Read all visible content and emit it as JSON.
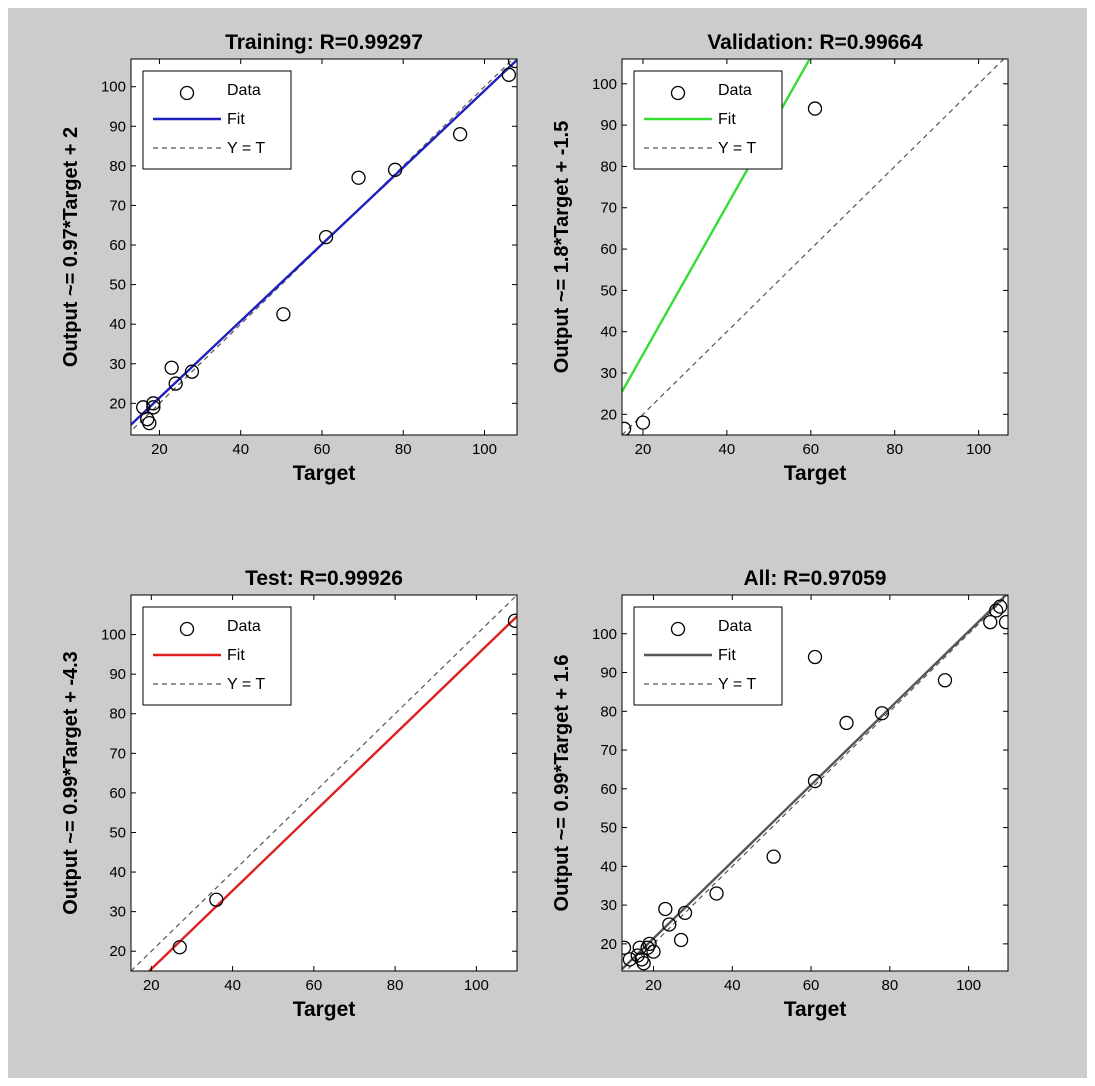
{
  "chart_data": [
    {
      "type": "scatter",
      "title": "Training: R=0.99297",
      "xlabel": "Target",
      "ylabel": "Output ~= 0.97*Target + 2",
      "xlim": [
        13,
        108
      ],
      "ylim": [
        12,
        107
      ],
      "xticks": [
        20,
        40,
        60,
        80,
        100
      ],
      "yticks": [
        20,
        30,
        40,
        50,
        60,
        70,
        80,
        90,
        100
      ],
      "fit": {
        "slope": 0.97,
        "intercept": 2,
        "color": "#1f1fbf"
      },
      "points": [
        {
          "x": 16,
          "y": 19
        },
        {
          "x": 17,
          "y": 16
        },
        {
          "x": 17.5,
          "y": 15
        },
        {
          "x": 18.5,
          "y": 19
        },
        {
          "x": 18.5,
          "y": 20
        },
        {
          "x": 23,
          "y": 29
        },
        {
          "x": 24,
          "y": 25
        },
        {
          "x": 28,
          "y": 28
        },
        {
          "x": 50.5,
          "y": 42.5
        },
        {
          "x": 61,
          "y": 62
        },
        {
          "x": 69,
          "y": 77
        },
        {
          "x": 78,
          "y": 79
        },
        {
          "x": 94,
          "y": 88
        },
        {
          "x": 106,
          "y": 103
        },
        {
          "x": 107.5,
          "y": 106.5
        }
      ],
      "legend": {
        "position": "top-left",
        "entries": [
          "Data",
          "Fit",
          "Y = T"
        ]
      }
    },
    {
      "type": "scatter",
      "title": "Validation: R=0.99664",
      "xlabel": "Target",
      "ylabel": "Output ~= 1.8*Target + -1.5",
      "xlim": [
        15,
        107
      ],
      "ylim": [
        15,
        106
      ],
      "xticks": [
        20,
        40,
        60,
        80,
        100
      ],
      "yticks": [
        20,
        30,
        40,
        50,
        60,
        70,
        80,
        90,
        100
      ],
      "fit": {
        "slope": 1.8,
        "intercept": -1.5,
        "color": "#33dd33"
      },
      "points": [
        {
          "x": 15.5,
          "y": 16.5
        },
        {
          "x": 20,
          "y": 18
        },
        {
          "x": 61,
          "y": 94
        }
      ],
      "legend": {
        "position": "top-left",
        "entries": [
          "Data",
          "Fit",
          "Y = T"
        ]
      }
    },
    {
      "type": "scatter",
      "title": "Test: R=0.99926",
      "xlabel": "Target",
      "ylabel": "Output ~= 0.99*Target + -4.3",
      "xlim": [
        15,
        110
      ],
      "ylim": [
        15,
        110
      ],
      "xticks": [
        20,
        40,
        60,
        80,
        100
      ],
      "yticks": [
        20,
        30,
        40,
        50,
        60,
        70,
        80,
        90,
        100
      ],
      "fit": {
        "slope": 0.99,
        "intercept": -4.3,
        "color": "#dd2020"
      },
      "points": [
        {
          "x": 27,
          "y": 21
        },
        {
          "x": 36,
          "y": 33
        },
        {
          "x": 109.5,
          "y": 103.5
        }
      ],
      "legend": {
        "position": "top-left",
        "entries": [
          "Data",
          "Fit",
          "Y = T"
        ]
      }
    },
    {
      "type": "scatter",
      "title": "All: R=0.97059",
      "xlabel": "Target",
      "ylabel": "Output ~= 0.99*Target + 1.6",
      "xlim": [
        12,
        110
      ],
      "ylim": [
        13,
        110
      ],
      "xticks": [
        20,
        40,
        60,
        80,
        100
      ],
      "yticks": [
        20,
        30,
        40,
        50,
        60,
        70,
        80,
        90,
        100
      ],
      "fit": {
        "slope": 0.99,
        "intercept": 1.6,
        "color": "#555555"
      },
      "points": [
        {
          "x": 12.5,
          "y": 19
        },
        {
          "x": 14,
          "y": 16
        },
        {
          "x": 16,
          "y": 17
        },
        {
          "x": 16.5,
          "y": 19
        },
        {
          "x": 17,
          "y": 16
        },
        {
          "x": 17.5,
          "y": 15
        },
        {
          "x": 18.5,
          "y": 19
        },
        {
          "x": 19,
          "y": 20
        },
        {
          "x": 20,
          "y": 18
        },
        {
          "x": 23,
          "y": 29
        },
        {
          "x": 24,
          "y": 25
        },
        {
          "x": 27,
          "y": 21
        },
        {
          "x": 28,
          "y": 28
        },
        {
          "x": 36,
          "y": 33
        },
        {
          "x": 50.5,
          "y": 42.5
        },
        {
          "x": 61,
          "y": 94
        },
        {
          "x": 61,
          "y": 62
        },
        {
          "x": 69,
          "y": 77
        },
        {
          "x": 78,
          "y": 79.5
        },
        {
          "x": 94,
          "y": 88
        },
        {
          "x": 105.5,
          "y": 103
        },
        {
          "x": 107,
          "y": 106
        },
        {
          "x": 108,
          "y": 107
        },
        {
          "x": 109.5,
          "y": 103
        }
      ],
      "legend": {
        "position": "top-left",
        "entries": [
          "Data",
          "Fit",
          "Y = T"
        ]
      }
    }
  ]
}
